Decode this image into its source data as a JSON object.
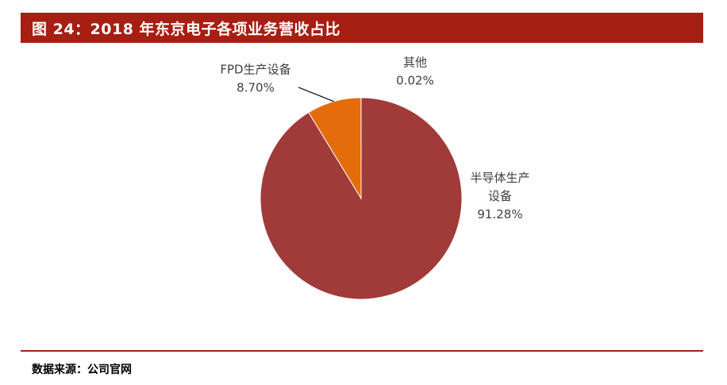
{
  "header": {
    "title": "图 24：2018 年东京电子各项业务营收占比"
  },
  "footer": {
    "source": "数据来源：公司官网"
  },
  "colors": {
    "title_bar": "#a71e12",
    "rule": "#a71e12"
  },
  "chart_data": {
    "type": "pie",
    "title": "",
    "slices": [
      {
        "label_lines": [
          "半导体生产",
          "设备"
        ],
        "pct_label": "91.28%",
        "value": 91.28,
        "color": "#a03b3a"
      },
      {
        "label_lines": [
          "FPD生产设备"
        ],
        "pct_label": "8.70%",
        "value": 8.7,
        "color": "#e46c0a"
      },
      {
        "label_lines": [
          "其他"
        ],
        "pct_label": "0.02%",
        "value": 0.02,
        "color": "#7f7f7f"
      }
    ],
    "legend": "none",
    "start_angle_deg": 0,
    "direction": "clockwise"
  }
}
